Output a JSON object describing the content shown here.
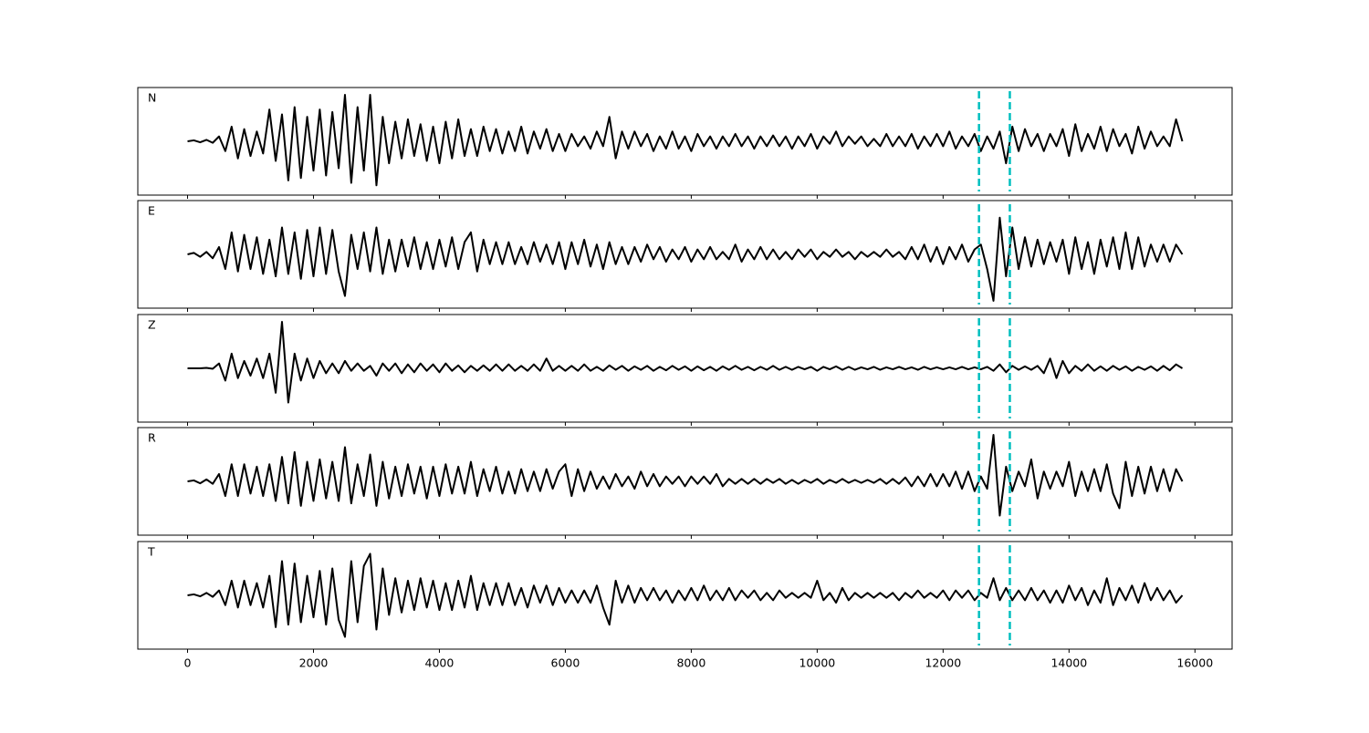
{
  "chart_data": {
    "type": "line",
    "x": [
      0,
      100,
      200,
      300,
      400,
      500,
      600,
      700,
      800,
      900,
      1000,
      1100,
      1200,
      1300,
      1400,
      1500,
      1600,
      1700,
      1800,
      1900,
      2000,
      2100,
      2200,
      2300,
      2400,
      2500,
      2600,
      2700,
      2800,
      2900,
      3000,
      3100,
      3200,
      3300,
      3400,
      3500,
      3600,
      3700,
      3800,
      3900,
      4000,
      4100,
      4200,
      4300,
      4400,
      4500,
      4600,
      4700,
      4800,
      4900,
      5000,
      5100,
      5200,
      5300,
      5400,
      5500,
      5600,
      5700,
      5800,
      5900,
      6000,
      6100,
      6200,
      6300,
      6400,
      6500,
      6600,
      6700,
      6800,
      6900,
      7000,
      7100,
      7200,
      7300,
      7400,
      7500,
      7600,
      7700,
      7800,
      7900,
      8000,
      8100,
      8200,
      8300,
      8400,
      8500,
      8600,
      8700,
      8800,
      8900,
      9000,
      9100,
      9200,
      9300,
      9400,
      9500,
      9600,
      9700,
      9800,
      9900,
      10000,
      10100,
      10200,
      10300,
      10400,
      10500,
      10600,
      10700,
      10800,
      10900,
      11000,
      11100,
      11200,
      11300,
      11400,
      11500,
      11600,
      11700,
      11800,
      11900,
      12000,
      12100,
      12200,
      12300,
      12400,
      12500,
      12600,
      12700,
      12800,
      12900,
      13000,
      13100,
      13200,
      13300,
      13400,
      13500,
      13600,
      13700,
      13800,
      13900,
      14000,
      14100,
      14200,
      14300,
      14400,
      14500,
      14600,
      14700,
      14800,
      14900,
      15000,
      15100,
      15200,
      15300,
      15400,
      15500,
      15600,
      15700,
      15800
    ],
    "series": [
      {
        "name": "N",
        "color": "#000000",
        "values": [
          0,
          0.02,
          -0.02,
          0.03,
          -0.03,
          0.1,
          -0.2,
          0.3,
          -0.35,
          0.25,
          -0.3,
          0.2,
          -0.25,
          0.65,
          -0.4,
          0.55,
          -0.8,
          0.7,
          -0.75,
          0.5,
          -0.6,
          0.65,
          -0.7,
          0.6,
          -0.55,
          0.95,
          -0.85,
          0.7,
          -0.6,
          0.95,
          -0.9,
          0.5,
          -0.45,
          0.4,
          -0.35,
          0.45,
          -0.3,
          0.35,
          -0.4,
          0.3,
          -0.45,
          0.4,
          -0.35,
          0.45,
          -0.3,
          0.25,
          -0.3,
          0.3,
          -0.2,
          0.25,
          -0.25,
          0.2,
          -0.2,
          0.3,
          -0.25,
          0.2,
          -0.15,
          0.25,
          -0.2,
          0.15,
          -0.2,
          0.15,
          -0.1,
          0.1,
          -0.15,
          0.2,
          -0.1,
          0.5,
          -0.35,
          0.2,
          -0.15,
          0.2,
          -0.1,
          0.15,
          -0.2,
          0.1,
          -0.15,
          0.2,
          -0.15,
          0.1,
          -0.2,
          0.15,
          -0.1,
          0.1,
          -0.15,
          0.1,
          -0.1,
          0.15,
          -0.1,
          0.1,
          -0.15,
          0.1,
          -0.1,
          0.12,
          -0.1,
          0.1,
          -0.15,
          0.1,
          -0.1,
          0.15,
          -0.15,
          0.1,
          -0.05,
          0.2,
          -0.1,
          0.1,
          -0.05,
          0.1,
          -0.1,
          0.05,
          -0.1,
          0.15,
          -0.1,
          0.1,
          -0.1,
          0.15,
          -0.15,
          0.1,
          -0.1,
          0.15,
          -0.1,
          0.2,
          -0.15,
          0.1,
          -0.1,
          0.15,
          -0.2,
          0.1,
          -0.15,
          0.2,
          -0.45,
          0.3,
          -0.2,
          0.25,
          -0.1,
          0.15,
          -0.2,
          0.15,
          -0.1,
          0.25,
          -0.3,
          0.35,
          -0.2,
          0.15,
          -0.15,
          0.3,
          -0.2,
          0.25,
          -0.1,
          0.15,
          -0.25,
          0.3,
          -0.15,
          0.2,
          -0.1,
          0.1,
          -0.1,
          0.45,
          0
        ]
      },
      {
        "name": "E",
        "color": "#000000",
        "values": [
          0,
          0.03,
          -0.05,
          0.05,
          -0.08,
          0.15,
          -0.3,
          0.45,
          -0.35,
          0.4,
          -0.3,
          0.35,
          -0.4,
          0.3,
          -0.45,
          0.55,
          -0.4,
          0.45,
          -0.5,
          0.5,
          -0.45,
          0.55,
          -0.4,
          0.5,
          -0.35,
          -0.85,
          0.4,
          -0.3,
          0.45,
          -0.35,
          0.55,
          -0.4,
          0.3,
          -0.35,
          0.3,
          -0.25,
          0.35,
          -0.3,
          0.25,
          -0.3,
          0.3,
          -0.25,
          0.35,
          -0.3,
          0.25,
          0.45,
          -0.35,
          0.3,
          -0.2,
          0.25,
          -0.2,
          0.25,
          -0.2,
          0.15,
          -0.2,
          0.25,
          -0.15,
          0.2,
          -0.2,
          0.25,
          -0.3,
          0.25,
          -0.2,
          0.3,
          -0.25,
          0.2,
          -0.3,
          0.25,
          -0.2,
          0.15,
          -0.2,
          0.15,
          -0.15,
          0.2,
          -0.1,
          0.15,
          -0.15,
          0.1,
          -0.1,
          0.15,
          -0.15,
          0.1,
          -0.1,
          0.15,
          -0.1,
          0.05,
          -0.1,
          0.2,
          -0.15,
          0.1,
          -0.1,
          0.15,
          -0.1,
          0.1,
          -0.1,
          0.05,
          -0.1,
          0.1,
          -0.05,
          0.1,
          -0.1,
          0.05,
          -0.05,
          0.1,
          -0.05,
          0.05,
          -0.1,
          0.05,
          -0.05,
          0.05,
          -0.05,
          0.1,
          -0.05,
          0.05,
          -0.1,
          0.15,
          -0.1,
          0.2,
          -0.15,
          0.15,
          -0.2,
          0.15,
          -0.1,
          0.2,
          -0.15,
          0.1,
          0.2,
          -0.3,
          -0.95,
          0.75,
          -0.45,
          0.55,
          -0.3,
          0.35,
          -0.25,
          0.3,
          -0.2,
          0.25,
          -0.15,
          0.3,
          -0.4,
          0.35,
          -0.3,
          0.25,
          -0.4,
          0.3,
          -0.25,
          0.35,
          -0.3,
          0.45,
          -0.3,
          0.35,
          -0.25,
          0.2,
          -0.15,
          0.2,
          -0.15,
          0.2,
          0
        ]
      },
      {
        "name": "Z",
        "color": "#000000",
        "values": [
          0,
          0,
          0,
          0.01,
          -0.01,
          0.1,
          -0.25,
          0.3,
          -0.2,
          0.15,
          -0.15,
          0.2,
          -0.2,
          0.3,
          -0.5,
          0.95,
          -0.7,
          0.3,
          -0.25,
          0.2,
          -0.2,
          0.15,
          -0.1,
          0.1,
          -0.1,
          0.15,
          -0.05,
          0.1,
          -0.05,
          0.05,
          -0.15,
          0.1,
          -0.05,
          0.1,
          -0.1,
          0.08,
          -0.08,
          0.1,
          -0.05,
          0.08,
          -0.08,
          0.1,
          -0.05,
          0.06,
          -0.08,
          0.05,
          -0.05,
          0.06,
          -0.05,
          0.08,
          -0.05,
          0.08,
          -0.05,
          0.05,
          -0.05,
          0.08,
          -0.05,
          0.2,
          -0.05,
          0.05,
          -0.05,
          0.05,
          -0.05,
          0.08,
          -0.05,
          0.03,
          -0.05,
          0.06,
          -0.03,
          0.05,
          -0.05,
          0.04,
          -0.03,
          0.05,
          -0.05,
          0.03,
          -0.04,
          0.05,
          -0.03,
          0.04,
          -0.05,
          0.04,
          -0.04,
          0.03,
          -0.05,
          0.04,
          -0.03,
          0.05,
          -0.03,
          0.03,
          -0.04,
          0.03,
          -0.03,
          0.05,
          -0.03,
          0.03,
          -0.03,
          0.03,
          -0.02,
          0.03,
          -0.05,
          0.03,
          -0.02,
          0.04,
          -0.03,
          0.03,
          -0.03,
          0.02,
          -0.02,
          0.03,
          -0.03,
          0.02,
          -0.02,
          0.03,
          -0.02,
          0.02,
          -0.03,
          0.03,
          -0.02,
          0.02,
          -0.02,
          0.02,
          -0.02,
          0.03,
          -0.02,
          0.02,
          -0.02,
          0.03,
          -0.05,
          0.08,
          -0.08,
          0.05,
          -0.03,
          0.04,
          -0.03,
          0.05,
          -0.1,
          0.2,
          -0.2,
          0.15,
          -0.1,
          0.05,
          -0.05,
          0.08,
          -0.05,
          0.04,
          -0.05,
          0.05,
          -0.03,
          0.04,
          -0.05,
          0.03,
          -0.03,
          0.04,
          -0.05,
          0.05,
          -0.04,
          0.08,
          0
        ]
      },
      {
        "name": "R",
        "color": "#000000",
        "values": [
          0,
          0.02,
          -0.04,
          0.04,
          -0.05,
          0.15,
          -0.3,
          0.35,
          -0.3,
          0.35,
          -0.25,
          0.3,
          -0.3,
          0.35,
          -0.4,
          0.5,
          -0.45,
          0.6,
          -0.5,
          0.4,
          -0.4,
          0.45,
          -0.35,
          0.4,
          -0.4,
          0.7,
          -0.45,
          0.35,
          -0.3,
          0.55,
          -0.5,
          0.4,
          -0.35,
          0.3,
          -0.3,
          0.35,
          -0.25,
          0.3,
          -0.35,
          0.3,
          -0.3,
          0.35,
          -0.25,
          0.3,
          -0.25,
          0.4,
          -0.3,
          0.25,
          -0.2,
          0.3,
          -0.25,
          0.2,
          -0.25,
          0.25,
          -0.2,
          0.2,
          -0.2,
          0.25,
          -0.15,
          0.2,
          0.35,
          -0.3,
          0.25,
          -0.2,
          0.2,
          -0.15,
          0.1,
          -0.15,
          0.15,
          -0.1,
          0.1,
          -0.15,
          0.2,
          -0.1,
          0.15,
          -0.1,
          0.1,
          -0.05,
          0.1,
          -0.1,
          0.1,
          -0.05,
          0.1,
          -0.05,
          0.15,
          -0.1,
          0.05,
          -0.05,
          0.05,
          -0.05,
          0.05,
          -0.05,
          0.05,
          -0.03,
          0.05,
          -0.05,
          0.03,
          -0.05,
          0.03,
          -0.03,
          0.05,
          -0.05,
          0.03,
          -0.03,
          0.05,
          -0.03,
          0.03,
          -0.03,
          0.03,
          -0.03,
          0.05,
          -0.05,
          0.05,
          -0.05,
          0.08,
          -0.1,
          0.1,
          -0.1,
          0.15,
          -0.1,
          0.15,
          -0.1,
          0.2,
          -0.15,
          0.2,
          -0.2,
          0.1,
          -0.15,
          0.95,
          -0.7,
          0.3,
          -0.2,
          0.2,
          -0.1,
          0.45,
          -0.35,
          0.2,
          -0.15,
          0.2,
          -0.1,
          0.4,
          -0.3,
          0.2,
          -0.2,
          0.25,
          -0.2,
          0.35,
          -0.25,
          -0.55,
          0.4,
          -0.3,
          0.3,
          -0.25,
          0.3,
          -0.2,
          0.25,
          -0.2,
          0.25,
          0
        ]
      },
      {
        "name": "T",
        "color": "#000000",
        "values": [
          0,
          0.02,
          -0.02,
          0.05,
          -0.03,
          0.1,
          -0.2,
          0.3,
          -0.25,
          0.3,
          -0.2,
          0.25,
          -0.25,
          0.4,
          -0.65,
          0.7,
          -0.6,
          0.65,
          -0.55,
          0.4,
          -0.45,
          0.5,
          -0.6,
          0.55,
          -0.5,
          -0.85,
          0.7,
          -0.55,
          0.6,
          0.85,
          -0.7,
          0.55,
          -0.4,
          0.35,
          -0.35,
          0.3,
          -0.3,
          0.35,
          -0.25,
          0.3,
          -0.3,
          0.25,
          -0.3,
          0.3,
          -0.25,
          0.4,
          -0.3,
          0.25,
          -0.2,
          0.25,
          -0.2,
          0.25,
          -0.2,
          0.15,
          -0.25,
          0.2,
          -0.15,
          0.2,
          -0.2,
          0.15,
          -0.15,
          0.1,
          -0.15,
          0.1,
          -0.15,
          0.2,
          -0.25,
          -0.6,
          0.3,
          -0.15,
          0.2,
          -0.15,
          0.15,
          -0.1,
          0.15,
          -0.1,
          0.1,
          -0.15,
          0.1,
          -0.1,
          0.15,
          -0.1,
          0.2,
          -0.1,
          0.1,
          -0.1,
          0.15,
          -0.1,
          0.1,
          -0.05,
          0.1,
          -0.1,
          0.05,
          -0.1,
          0.1,
          -0.05,
          0.05,
          -0.05,
          0.05,
          -0.05,
          0.3,
          -0.1,
          0.05,
          -0.15,
          0.15,
          -0.1,
          0.05,
          -0.05,
          0.05,
          -0.05,
          0.05,
          -0.05,
          0.05,
          -0.1,
          0.05,
          -0.05,
          0.1,
          -0.05,
          0.05,
          -0.05,
          0.1,
          -0.1,
          0.1,
          -0.05,
          0.1,
          -0.1,
          0.05,
          -0.05,
          0.35,
          -0.1,
          0.15,
          -0.1,
          0.1,
          -0.1,
          0.15,
          -0.1,
          0.1,
          -0.15,
          0.1,
          -0.15,
          0.2,
          -0.1,
          0.15,
          -0.2,
          0.1,
          -0.15,
          0.35,
          -0.2,
          0.15,
          -0.1,
          0.2,
          -0.15,
          0.25,
          -0.1,
          0.15,
          -0.1,
          0.1,
          -0.15,
          0
        ]
      }
    ],
    "xlim": [
      -790,
      16590
    ],
    "xticks": [
      0,
      2000,
      4000,
      6000,
      8000,
      10000,
      12000,
      14000,
      16000
    ],
    "ylim": [
      -1.1,
      1.1
    ],
    "vlines": [
      12570,
      13060
    ],
    "vline_color": "#00bfbf"
  }
}
